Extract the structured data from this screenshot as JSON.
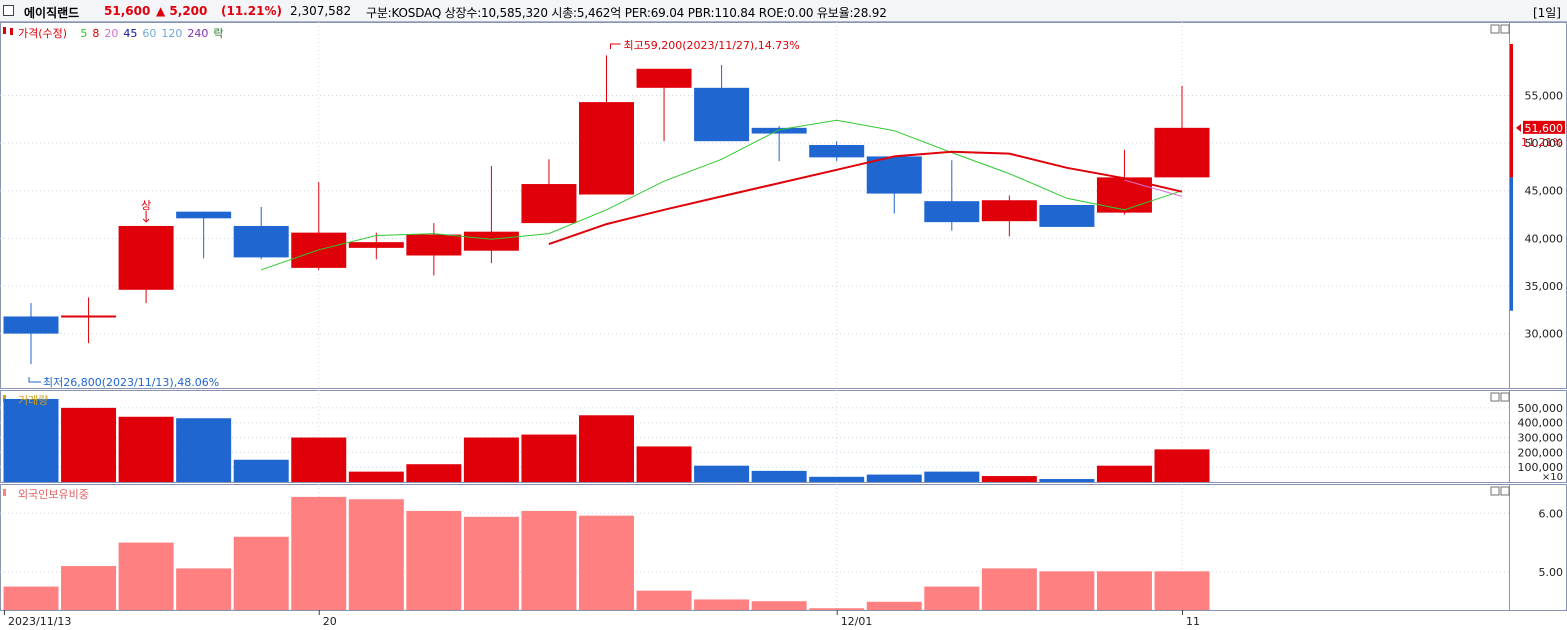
{
  "stock": {
    "name": "에이직랜드",
    "price": "51,600",
    "change": "▲ 5,200",
    "change_pct": "(11.21%)",
    "volume": "2,307,582",
    "info": "구분:KOSDAQ 상장수:10,585,320 시총:5,462억 PER:69.04 PBR:110.84 ROE:0.00 유보율:28.92",
    "period_button": "[1일]"
  },
  "colors": {
    "up": "#e0000a",
    "down": "#1f66d0",
    "ma5": "#2ec82e",
    "ma20": "#e0000a",
    "foreign": "#ff8080",
    "grid": "#cfd6e2"
  },
  "price_panel": {
    "legend": [
      {
        "label": "가격(수정)",
        "color": "#e0000a"
      },
      {
        "label": "5",
        "color": "#2ec82e"
      },
      {
        "label": "8",
        "color": "#e0000a"
      },
      {
        "label": "20",
        "color": "#d070d0"
      },
      {
        "label": "45",
        "color": "#1010a0"
      },
      {
        "label": "60",
        "color": "#70a8d8"
      },
      {
        "label": "120",
        "color": "#70a8d8"
      },
      {
        "label": "240",
        "color": "#8030b0"
      },
      {
        "label": "락",
        "color": "#207020"
      }
    ],
    "y_ticks": [
      "55,000",
      "50,000",
      "45,000",
      "40,000",
      "35,000",
      "30,000"
    ],
    "current_price_label": "51,600",
    "current_pct_label": "11.21%",
    "high_annotation": "최고59,200(2023/11/27),14.73%",
    "low_annotation": "최저26,800(2023/11/13),48.06%",
    "upper_limit_mark": "상"
  },
  "volume_panel": {
    "title": "거래량",
    "y_ticks": [
      "500,000",
      "400,000",
      "300,000",
      "200,000",
      "100,000"
    ],
    "unit": "×10"
  },
  "foreign_panel": {
    "title": "외국인보유비중",
    "y_ticks": [
      "6.00",
      "5.00"
    ]
  },
  "x_axis": {
    "labels": [
      "2023/11/13",
      "20",
      "12/01",
      "11"
    ]
  },
  "chart_data": {
    "type": "candlestick",
    "dates": [
      "2023/11/13",
      "11/14",
      "11/15",
      "11/16",
      "11/17",
      "11/20",
      "11/21",
      "11/22",
      "11/23",
      "11/24",
      "11/27",
      "11/28",
      "11/29",
      "11/30",
      "12/01",
      "12/04",
      "12/05",
      "12/06",
      "12/07",
      "12/08",
      "12/11"
    ],
    "ohlc": [
      [
        31800,
        33200,
        26800,
        30000
      ],
      [
        31700,
        33800,
        29000,
        31800
      ],
      [
        34600,
        41300,
        33200,
        41300
      ],
      [
        42800,
        42800,
        37900,
        42100
      ],
      [
        41300,
        43300,
        37800,
        38000
      ],
      [
        36900,
        45900,
        36700,
        40600
      ],
      [
        39000,
        40600,
        37800,
        39600
      ],
      [
        38200,
        41600,
        36100,
        40400
      ],
      [
        38700,
        47600,
        37400,
        40700
      ],
      [
        41600,
        48300,
        41600,
        45700
      ],
      [
        44600,
        59200,
        44600,
        54300
      ],
      [
        55800,
        57800,
        50200,
        57800
      ],
      [
        55800,
        58200,
        50200,
        50200
      ],
      [
        51600,
        51800,
        48100,
        51000
      ],
      [
        49800,
        50200,
        48100,
        48500
      ],
      [
        48600,
        48600,
        42600,
        44700
      ],
      [
        43900,
        48200,
        40800,
        41700
      ],
      [
        41800,
        44500,
        40200,
        44000
      ],
      [
        43500,
        43500,
        41200,
        41200
      ],
      [
        42700,
        49300,
        42500,
        46400
      ],
      [
        46400,
        56000,
        46400,
        51600
      ]
    ],
    "ma5": [
      null,
      null,
      null,
      null,
      36700,
      38800,
      40300,
      40500,
      39900,
      40500,
      43000,
      46000,
      48300,
      51400,
      52400,
      51300,
      49000,
      46800,
      44200,
      43000,
      45000
    ],
    "ma20": [
      null,
      null,
      null,
      null,
      null,
      null,
      null,
      null,
      null,
      39400,
      41500,
      43000,
      44400,
      45800,
      47200,
      48600,
      49100,
      48900,
      47400,
      46300,
      44900
    ],
    "ma8": [
      null,
      null,
      null,
      null,
      null,
      null,
      null,
      null,
      null,
      null,
      null,
      null,
      null,
      null,
      null,
      null,
      null,
      null,
      null,
      46100,
      44400
    ],
    "volume": [
      560000,
      500000,
      440000,
      430000,
      150000,
      300000,
      70000,
      120000,
      300000,
      320000,
      450000,
      240000,
      110000,
      75000,
      35000,
      50000,
      70000,
      40000,
      20000,
      110000,
      220000
    ],
    "foreign_pct": [
      4.75,
      5.1,
      5.5,
      5.06,
      5.6,
      6.28,
      6.24,
      6.04,
      5.94,
      6.04,
      5.96,
      4.68,
      4.53,
      4.5,
      4.38,
      4.49,
      4.75,
      5.06,
      5.01,
      5.01,
      5.01
    ],
    "price_ylim": [
      24500,
      62500
    ],
    "volume_ylim": [
      0,
      580000
    ],
    "foreign_ylim": [
      4.35,
      6.5
    ]
  }
}
